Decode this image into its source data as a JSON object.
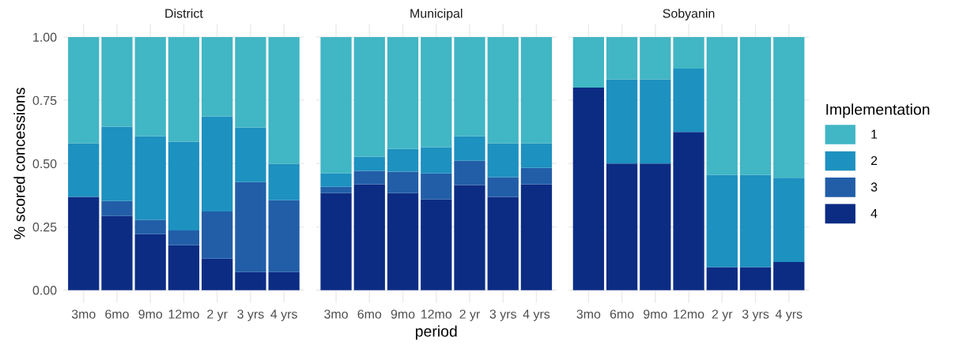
{
  "chart_data": [
    {
      "type": "bar",
      "title": "District",
      "ylabel": "% scored concessions",
      "legend_title": "Implementation",
      "legend": "right",
      "categories": [
        "3mo",
        "6mo",
        "9mo",
        "12mo",
        "2 yr",
        "3 yrs",
        "4 yrs"
      ],
      "stacked": true,
      "ylim": [
        -0.05,
        1.05
      ],
      "yticks": [
        {
          "value": 0,
          "label": "0.00"
        },
        {
          "value": 0.25,
          "label": "0.25"
        },
        {
          "value": 0.5,
          "label": "0.50"
        },
        {
          "value": 0.75,
          "label": "0.75"
        },
        {
          "value": 1,
          "label": "1.00"
        }
      ],
      "grid": true,
      "series": [
        {
          "name": "4",
          "color": "#0c2c84",
          "values": [
            0.368,
            0.293,
            0.221,
            0.177,
            0.124,
            0.071,
            0.071
          ]
        },
        {
          "name": "3",
          "color": "#225ea8",
          "values": [
            0,
            0.059,
            0.056,
            0.059,
            0.187,
            0.356,
            0.284
          ]
        },
        {
          "name": "2",
          "color": "#1d91c0",
          "values": [
            0.212,
            0.294,
            0.331,
            0.35,
            0.375,
            0.216,
            0.144
          ]
        },
        {
          "name": "1",
          "color": "#41b6c4",
          "values": [
            0.42,
            0.354,
            0.392,
            0.414,
            0.314,
            0.357,
            0.501
          ]
        }
      ]
    },
    {
      "type": "bar",
      "title": "Municipal",
      "xlabel": "period",
      "categories": [
        "3mo",
        "6mo",
        "9mo",
        "12mo",
        "2 yr",
        "3 yrs",
        "4 yrs"
      ],
      "stacked": true,
      "ylim": [
        -0.05,
        1.05
      ],
      "yticks": [
        0,
        0.25,
        0.5,
        0.75,
        1
      ],
      "grid": true,
      "tick_labels": "x",
      "series": [
        {
          "name": "4",
          "color": "#0c2c84",
          "values": [
            0.383,
            0.418,
            0.383,
            0.358,
            0.415,
            0.368,
            0.418
          ]
        },
        {
          "name": "3",
          "color": "#225ea8",
          "values": [
            0.025,
            0.053,
            0.085,
            0.103,
            0.096,
            0.078,
            0.065
          ]
        },
        {
          "name": "2",
          "color": "#1d91c0",
          "values": [
            0.053,
            0.056,
            0.09,
            0.104,
            0.097,
            0.134,
            0.097
          ]
        },
        {
          "name": "1",
          "color": "#41b6c4",
          "values": [
            0.539,
            0.473,
            0.442,
            0.435,
            0.392,
            0.42,
            0.42
          ]
        }
      ]
    },
    {
      "type": "bar",
      "title": "Sobyanin",
      "categories": [
        "3mo",
        "6mo",
        "9mo",
        "12mo",
        "2 yr",
        "3 yrs",
        "4 yrs"
      ],
      "stacked": true,
      "ylim": [
        -0.05,
        1.05
      ],
      "yticks": [
        0,
        0.25,
        0.5,
        0.75,
        1
      ],
      "grid": true,
      "tick_labels": "x",
      "series": [
        {
          "name": "4",
          "color": "#0c2c84",
          "values": [
            0.8,
            0.5,
            0.5,
            0.625,
            0.091,
            0.091,
            0.111
          ]
        },
        {
          "name": "3",
          "color": "#225ea8",
          "values": [
            0,
            0,
            0,
            0,
            0,
            0,
            0
          ]
        },
        {
          "name": "2",
          "color": "#1d91c0",
          "values": [
            0,
            0.333,
            0.333,
            0.25,
            0.364,
            0.364,
            0.333
          ]
        },
        {
          "name": "1",
          "color": "#41b6c4",
          "values": [
            0.2,
            0.167,
            0.167,
            0.125,
            0.545,
            0.545,
            0.556
          ]
        }
      ]
    }
  ]
}
